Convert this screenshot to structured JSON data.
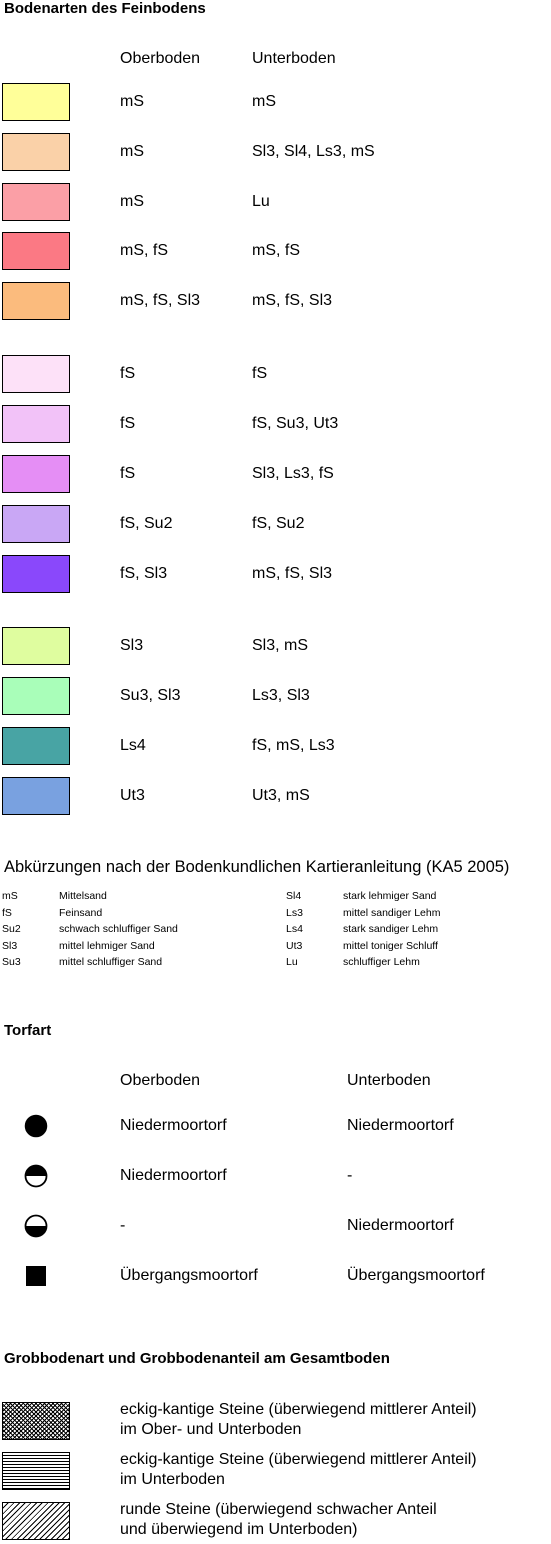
{
  "soil": {
    "title": "Bodenarten des Feinbodens",
    "col_top": "Oberboden",
    "col_sub": "Unterboden",
    "rows": [
      {
        "color": "#ffff99",
        "top": "mS",
        "sub": "mS"
      },
      {
        "color": "#fad1a8",
        "top": "mS",
        "sub": "Sl3, Sl4, Ls3, mS"
      },
      {
        "color": "#fb9fa6",
        "top": "mS",
        "sub": "Lu"
      },
      {
        "color": "#fb7984",
        "top": "mS, fS",
        "sub": "mS, fS"
      },
      {
        "color": "#fbbb7d",
        "top": "mS, fS, Sl3",
        "sub": "mS, fS, Sl3"
      },
      {
        "color": "#fde1f8",
        "top": "fS",
        "sub": "fS"
      },
      {
        "color": "#f2c2f8",
        "top": "fS",
        "sub": "fS, Su3, Ut3"
      },
      {
        "color": "#e58ef5",
        "top": "fS",
        "sub": "Sl3, Ls3, fS"
      },
      {
        "color": "#c9a7f5",
        "top": "fS, Su2",
        "sub": "fS, Su2"
      },
      {
        "color": "#8a48fb",
        "top": "fS, Sl3",
        "sub": "mS, fS, Sl3"
      },
      {
        "color": "#dffd9f",
        "top": "Sl3",
        "sub": "Sl3, mS"
      },
      {
        "color": "#a9feb9",
        "top": "Su3, Sl3",
        "sub": "Ls3, Sl3"
      },
      {
        "color": "#48a4a4",
        "top": "Ls4",
        "sub": "fS, mS, Ls3"
      },
      {
        "color": "#79a1e0",
        "top": "Ut3",
        "sub": "Ut3, mS"
      }
    ]
  },
  "abbr": {
    "title": "Abkürzungen nach der Bodenkundlichen Kartieranleitung (KA5 2005)",
    "left": [
      {
        "code": "mS",
        "desc": "Mittelsand"
      },
      {
        "code": "fS",
        "desc": "Feinsand"
      },
      {
        "code": "Su2",
        "desc": "schwach schluffiger Sand"
      },
      {
        "code": "Sl3",
        "desc": "mittel lehmiger Sand"
      },
      {
        "code": "Su3",
        "desc": "mittel schluffiger Sand"
      }
    ],
    "right": [
      {
        "code": "Sl4",
        "desc": "stark lehmiger Sand"
      },
      {
        "code": "Ls3",
        "desc": "mittel sandiger Lehm"
      },
      {
        "code": "Ls4",
        "desc": "stark sandiger Lehm"
      },
      {
        "code": "Ut3",
        "desc": "mittel toniger Schluff"
      },
      {
        "code": "Lu",
        "desc": "schluffiger Lehm"
      }
    ]
  },
  "peat": {
    "title": "Torfart",
    "col_top": "Oberboden",
    "col_sub": "Unterboden",
    "rows": [
      {
        "icon": "full-circle-icon",
        "top": "Niedermoortorf",
        "sub": "Niedermoortorf"
      },
      {
        "icon": "top-half-circle-icon",
        "top": "Niedermoortorf",
        "sub": "-"
      },
      {
        "icon": "bottom-half-circle-icon",
        "top": "-",
        "sub": "Niedermoortorf"
      },
      {
        "icon": "filled-square-icon",
        "top": "Übergangsmoortorf",
        "sub": "Übergangsmoortorf"
      }
    ]
  },
  "coarse": {
    "title": "Grobbodenart und Grobbodenanteil am Gesamtboden",
    "rows": [
      {
        "pattern": "crosshatch-pattern",
        "line1": "eckig-kantige Steine (überwiegend mittlerer Anteil)",
        "line2": "im Ober- und Unterboden"
      },
      {
        "pattern": "horizontal-lines-pattern",
        "line1": "eckig-kantige Steine (überwiegend mittlerer Anteil)",
        "line2": "im Unterboden"
      },
      {
        "pattern": "diagonal-lines-pattern",
        "line1": "runde Steine (überwiegend schwacher Anteil",
        "line2": "und überwiegend im Unterboden)"
      }
    ]
  }
}
